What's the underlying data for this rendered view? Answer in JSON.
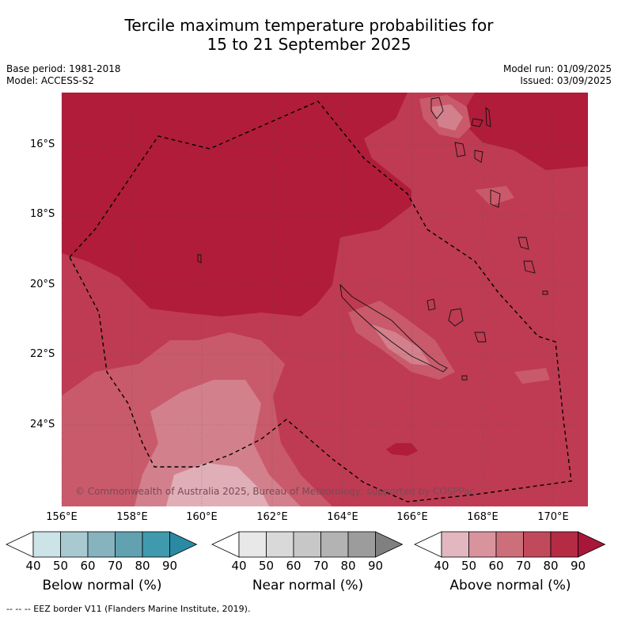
{
  "title_line1": "Tercile maximum temperature probabilities for",
  "title_line2": "15 to 21 September 2025",
  "base_period": "Base period: 1981-2018",
  "model": "Model: ACCESS-S2",
  "model_run": "Model run: 01/09/2025",
  "issued": "Issued: 03/09/2025",
  "lat_labels": [
    "16°S",
    "18°S",
    "20°S",
    "22°S",
    "24°S"
  ],
  "lon_labels": [
    "156°E",
    "158°E",
    "160°E",
    "162°E",
    "164°E",
    "166°E",
    "168°E",
    "170°E"
  ],
  "copyright": "© Commonwealth of Australia 2025, Bureau of Meteorology, supported by COSPPac",
  "colorbars": [
    {
      "title": "Below normal (%)",
      "ticks": [
        "40",
        "50",
        "60",
        "70",
        "80",
        "90"
      ],
      "colors": [
        "#ffffff",
        "#cce3e8",
        "#a8c9cf",
        "#86b3bd",
        "#62a1b0",
        "#3f9aad",
        "#2b8aa3"
      ]
    },
    {
      "title": "Near normal (%)",
      "ticks": [
        "40",
        "50",
        "60",
        "70",
        "80",
        "90"
      ],
      "colors": [
        "#ffffff",
        "#e8e8e8",
        "#d9d9d9",
        "#c7c7c7",
        "#b3b3b3",
        "#9c9c9c",
        "#808080"
      ]
    },
    {
      "title": "Above normal (%)",
      "ticks": [
        "40",
        "50",
        "60",
        "70",
        "80",
        "90"
      ],
      "colors": [
        "#ffffff",
        "#e3b7bf",
        "#d9939d",
        "#cc6f7b",
        "#c04a5b",
        "#b52b44",
        "#a8173a"
      ]
    }
  ],
  "footer": "--  --  -- EEZ border V11 (Flanders Marine Institute, 2019).",
  "map_colors": {
    "p90": "#b01c3a",
    "p80": "#be3b53",
    "p70": "#c95a6b",
    "p60": "#d3808d",
    "p50": "#e0aeb6"
  },
  "gridlines": true
}
